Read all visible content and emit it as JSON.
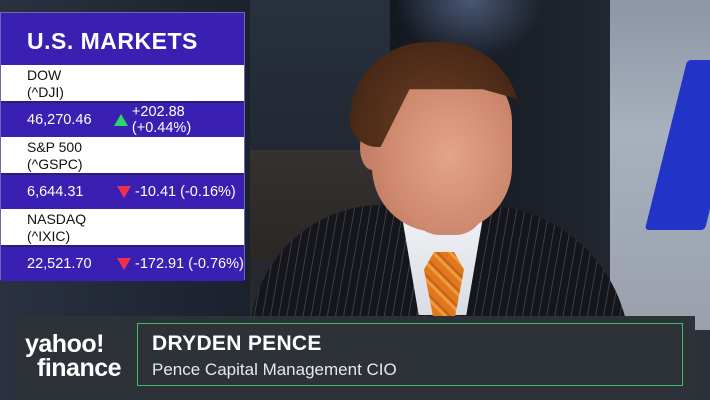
{
  "markets_panel": {
    "title": "U.S. MARKETS",
    "tickers": [
      {
        "name": "DOW",
        "symbol": "(^DJI)",
        "price": "46,270.46",
        "direction": "up",
        "change": "+202.88 (+0.44%)",
        "change_color": "#2bd66b"
      },
      {
        "name": "S&P 500",
        "symbol": "(^GSPC)",
        "price": "6,644.31",
        "direction": "down",
        "change": "-10.41 (-0.16%)",
        "change_color": "#f0304e"
      },
      {
        "name": "NASDAQ",
        "symbol": "(^IXIC)",
        "price": "22,521.70",
        "direction": "down",
        "change": "-172.91 (-0.76%)",
        "change_color": "#f0304e"
      }
    ]
  },
  "lower_third": {
    "logo_line1": "yahoo!",
    "logo_line2": "finance",
    "guest_name": "DRYDEN PENCE",
    "guest_title": "Pence Capital Management CIO",
    "accent_color": "#3fbe6a"
  },
  "colors": {
    "panel_purple": "#3a1fb3",
    "panel_dark": "#2b1e7a"
  }
}
